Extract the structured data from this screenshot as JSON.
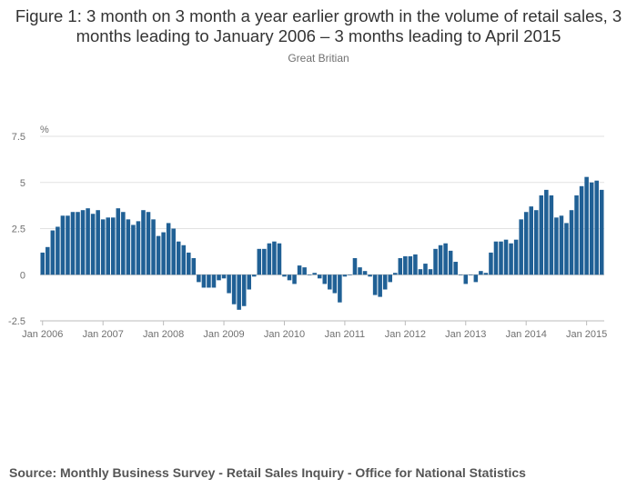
{
  "chart_data": {
    "type": "bar",
    "title": "Figure 1: 3 month on 3 month a year earlier growth in the volume of retail sales, 3 months leading to January 2006 – 3 months leading to April 2015",
    "subtitle": "Great Britian",
    "ylabel": "%",
    "ylim": [
      -2.5,
      7.5
    ],
    "yticks": [
      {
        "value": 7.5,
        "label": "7.5"
      },
      {
        "value": 5,
        "label": "5"
      },
      {
        "value": 2.5,
        "label": "2.5"
      },
      {
        "value": 0,
        "label": "0"
      },
      {
        "value": -2.5,
        "label": "-2.5"
      }
    ],
    "grid": true,
    "bar_color": "#206095",
    "start": "Jan 2006",
    "xticks": [
      {
        "index": 0,
        "label": "Jan 2006"
      },
      {
        "index": 12,
        "label": "Jan 2007"
      },
      {
        "index": 24,
        "label": "Jan 2008"
      },
      {
        "index": 36,
        "label": "Jan 2009"
      },
      {
        "index": 48,
        "label": "Jan 2010"
      },
      {
        "index": 60,
        "label": "Jan 2011"
      },
      {
        "index": 72,
        "label": "Jan 2012"
      },
      {
        "index": 84,
        "label": "Jan 2013"
      },
      {
        "index": 96,
        "label": "Jan 2014"
      },
      {
        "index": 108,
        "label": "Jan 2015"
      }
    ],
    "values": [
      1.2,
      1.5,
      2.4,
      2.6,
      3.2,
      3.2,
      3.4,
      3.4,
      3.5,
      3.6,
      3.3,
      3.5,
      3.0,
      3.1,
      3.1,
      3.6,
      3.4,
      3.0,
      2.7,
      2.9,
      3.5,
      3.4,
      3.0,
      2.1,
      2.3,
      2.8,
      2.5,
      1.8,
      1.6,
      1.2,
      0.9,
      -0.4,
      -0.7,
      -0.7,
      -0.7,
      -0.3,
      -0.2,
      -1.0,
      -1.6,
      -1.9,
      -1.7,
      -0.8,
      -0.1,
      1.4,
      1.4,
      1.7,
      1.8,
      1.7,
      -0.1,
      -0.3,
      -0.5,
      0.5,
      0.4,
      0.0,
      0.1,
      -0.2,
      -0.5,
      -0.8,
      -1.0,
      -1.5,
      -0.1,
      0.0,
      0.9,
      0.4,
      0.2,
      -0.1,
      -1.1,
      -1.2,
      -0.8,
      -0.4,
      0.1,
      0.9,
      1.0,
      1.0,
      1.1,
      0.3,
      0.6,
      0.3,
      1.4,
      1.6,
      1.7,
      1.3,
      0.7,
      0.0,
      -0.5,
      0.0,
      -0.4,
      0.2,
      0.1,
      1.2,
      1.8,
      1.8,
      1.9,
      1.7,
      1.9,
      3.0,
      3.4,
      3.7,
      3.5,
      4.3,
      4.6,
      4.3,
      3.1,
      3.2,
      2.8,
      3.5,
      4.3,
      4.8,
      5.3,
      5.0,
      5.1,
      4.6
    ]
  },
  "source": "Source: Monthly Business Survey - Retail Sales Inquiry - Office for National Statistics"
}
